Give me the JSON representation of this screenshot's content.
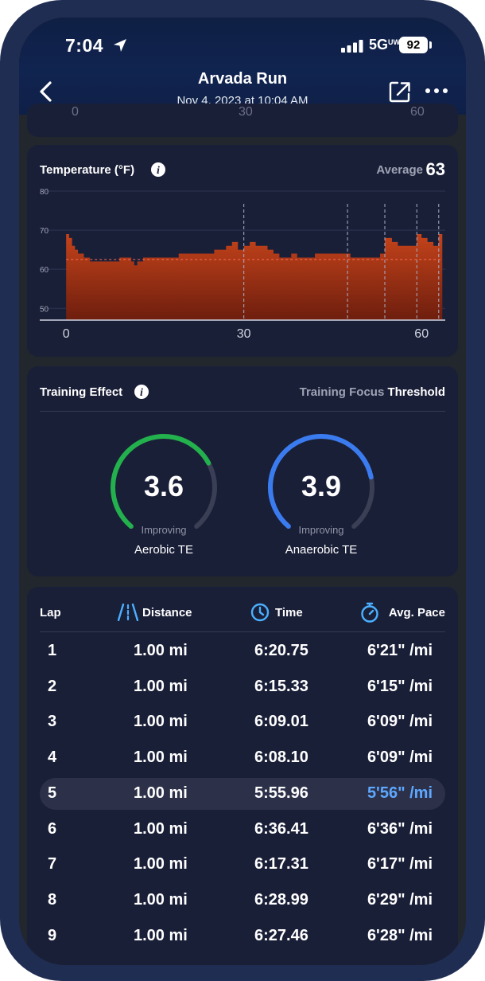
{
  "status_bar": {
    "time": "7:04",
    "network": "5G",
    "network_suffix": "UW",
    "battery": "92"
  },
  "header": {
    "title": "Arvada Run",
    "subtitle": "Nov 4, 2023 at 10:04 AM",
    "icons": [
      "back-chevron-icon",
      "share-icon",
      "more-icon"
    ]
  },
  "top_card_remnant": {
    "labels": [
      "0",
      "30",
      "60"
    ]
  },
  "temperature": {
    "title": "Temperature (°F)",
    "average_label": "Average",
    "average_value": "63",
    "chart_data": {
      "type": "area",
      "title": "Temperature (°F)",
      "xlabel": "",
      "ylabel": "",
      "ylim": [
        47,
        80
      ],
      "xlim": [
        -1.5,
        64
      ],
      "y_ticks": [
        "80",
        "70",
        "60",
        "50"
      ],
      "y_tick_values": [
        80,
        70,
        60,
        50
      ],
      "x_ticks": [
        "0",
        "30",
        "60"
      ],
      "x_tick_values": [
        0,
        30,
        60
      ],
      "average": 62.5,
      "lap_markers": [
        30,
        47.5,
        53.8,
        59.2,
        62.9
      ],
      "grid": true,
      "fill_color": "#c4431a",
      "series": [
        {
          "values": [
            [
              0,
              69
            ],
            [
              0.5,
              68
            ],
            [
              1,
              66
            ],
            [
              1.5,
              65
            ],
            [
              2,
              64
            ],
            [
              3,
              63
            ],
            [
              4,
              62
            ],
            [
              5,
              62
            ],
            [
              6,
              62
            ],
            [
              7,
              62
            ],
            [
              8,
              62
            ],
            [
              9,
              63
            ],
            [
              10,
              63
            ],
            [
              11,
              62
            ],
            [
              11.5,
              61
            ],
            [
              12,
              62
            ],
            [
              13,
              63
            ],
            [
              14,
              63
            ],
            [
              15,
              63
            ],
            [
              16,
              63
            ],
            [
              17,
              63
            ],
            [
              18,
              63
            ],
            [
              19,
              64
            ],
            [
              20,
              64
            ],
            [
              21,
              64
            ],
            [
              22,
              64
            ],
            [
              23,
              64
            ],
            [
              24,
              64
            ],
            [
              25,
              65
            ],
            [
              26,
              65
            ],
            [
              27,
              66
            ],
            [
              28,
              67
            ],
            [
              29,
              65
            ],
            [
              30,
              66
            ],
            [
              31,
              67
            ],
            [
              32,
              66
            ],
            [
              33,
              66
            ],
            [
              34,
              65
            ],
            [
              35,
              64
            ],
            [
              36,
              63
            ],
            [
              37,
              63
            ],
            [
              38,
              64
            ],
            [
              39,
              63
            ],
            [
              40,
              63
            ],
            [
              41,
              63
            ],
            [
              42,
              64
            ],
            [
              43,
              64
            ],
            [
              44,
              64
            ],
            [
              45,
              64
            ],
            [
              46,
              64
            ],
            [
              47,
              64
            ],
            [
              47.5,
              64
            ],
            [
              48,
              63
            ],
            [
              49,
              63
            ],
            [
              50,
              63
            ],
            [
              51,
              63
            ],
            [
              52,
              63
            ],
            [
              53,
              64
            ],
            [
              53.8,
              68
            ],
            [
              54,
              68
            ],
            [
              55,
              67
            ],
            [
              56,
              66
            ],
            [
              57,
              66
            ],
            [
              58,
              66
            ],
            [
              59,
              66
            ],
            [
              59.2,
              69
            ],
            [
              60,
              68
            ],
            [
              61,
              67
            ],
            [
              62,
              66
            ],
            [
              62.9,
              69
            ],
            [
              63,
              69
            ]
          ]
        }
      ]
    }
  },
  "training_effect": {
    "title": "Training Effect",
    "focus_label": "Training Focus",
    "focus_value": "Threshold",
    "aerobic": {
      "value": "3.6",
      "numeric": 3.6,
      "status": "Improving",
      "name": "Aerobic TE",
      "color": "#22b14c"
    },
    "anaerobic": {
      "value": "3.9",
      "numeric": 3.9,
      "status": "Improving",
      "name": "Anaerobic TE",
      "color": "#3a7cf0"
    },
    "gauge_max": 5.0,
    "track_color": "#3a3f55"
  },
  "laps": {
    "headers": {
      "lap": "Lap",
      "distance": "Distance",
      "time": "Time",
      "pace": "Avg. Pace"
    },
    "icons": {
      "distance": "road-icon",
      "time": "clock-icon",
      "pace": "stopwatch-icon"
    },
    "accent": "#4ab0ff",
    "highlight_color": "#5ea8ff",
    "rows": [
      {
        "lap": "1",
        "distance": "1.00 mi",
        "time": "6:20.75",
        "pace": "6'21\" /mi"
      },
      {
        "lap": "2",
        "distance": "1.00 mi",
        "time": "6:15.33",
        "pace": "6'15\" /mi"
      },
      {
        "lap": "3",
        "distance": "1.00 mi",
        "time": "6:09.01",
        "pace": "6'09\" /mi"
      },
      {
        "lap": "4",
        "distance": "1.00 mi",
        "time": "6:08.10",
        "pace": "6'09\" /mi"
      },
      {
        "lap": "5",
        "distance": "1.00 mi",
        "time": "5:55.96",
        "pace": "5'56\" /mi",
        "highlight": true
      },
      {
        "lap": "6",
        "distance": "1.00 mi",
        "time": "6:36.41",
        "pace": "6'36\" /mi"
      },
      {
        "lap": "7",
        "distance": "1.00 mi",
        "time": "6:17.31",
        "pace": "6'17\" /mi"
      },
      {
        "lap": "8",
        "distance": "1.00 mi",
        "time": "6:28.99",
        "pace": "6'29\" /mi"
      },
      {
        "lap": "9",
        "distance": "1.00 mi",
        "time": "6:27.46",
        "pace": "6'28\" /mi"
      }
    ]
  }
}
